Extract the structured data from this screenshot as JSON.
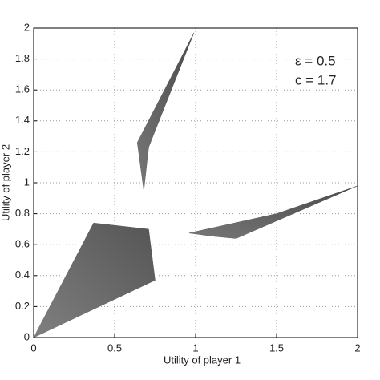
{
  "chart_data": {
    "type": "polygon",
    "xlabel": "Utility of player 1",
    "ylabel": "Utility of player 2",
    "annotations": [
      "ε = 0.5",
      "c = 1.7"
    ],
    "xlim": [
      0,
      2
    ],
    "ylim": [
      0,
      2
    ],
    "xticks": [
      0,
      0.5,
      1,
      1.5,
      2
    ],
    "yticks": [
      0,
      0.2,
      0.4,
      0.6,
      0.8,
      1,
      1.2,
      1.4,
      1.6,
      1.8,
      2
    ],
    "grid": true,
    "series": [
      {
        "color": "#555555",
        "x": [
          0,
          0.37,
          0.71,
          0.75
        ],
        "y": [
          0,
          0.74,
          0.7,
          0.37
        ]
      },
      {
        "color": "#4a4a4a",
        "x": [
          0.99,
          0.64,
          0.68,
          0.71
        ],
        "y": [
          1.97,
          1.26,
          0.95,
          1.23
        ]
      },
      {
        "color": "#4a4a4a",
        "x": [
          0.96,
          1.5,
          2,
          1.25,
          1.1
        ],
        "y": [
          0.675,
          0.8,
          0.98,
          0.64,
          0.655
        ]
      }
    ]
  }
}
